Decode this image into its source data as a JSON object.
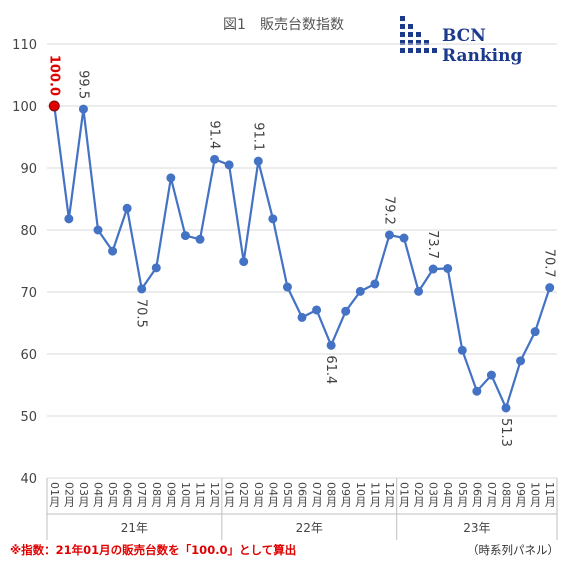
{
  "title": "図1　販売台数指数",
  "logo": {
    "name": "BCN Ranking",
    "icon": "bcn-grid-logo-icon",
    "color": "#1b3a8c"
  },
  "note": "※指数：21年01月の販売台数を「100.0」として算出",
  "panel_label": "（時系列パネル）",
  "chart_data": {
    "type": "line",
    "ylim": [
      40,
      110
    ],
    "yticks": [
      40,
      50,
      60,
      70,
      80,
      90,
      100,
      110
    ],
    "grid": true,
    "line_color": "#4472c4",
    "highlight_color": "#e00000",
    "x": [
      "01月",
      "02月",
      "03月",
      "04月",
      "05月",
      "06月",
      "07月",
      "08月",
      "09月",
      "10月",
      "11月",
      "12月",
      "01月",
      "02月",
      "03月",
      "04月",
      "05月",
      "06月",
      "07月",
      "08月",
      "09月",
      "10月",
      "11月",
      "12月",
      "01月",
      "02月",
      "03月",
      "04月",
      "05月",
      "06月",
      "07月",
      "08月",
      "09月",
      "10月",
      "11月"
    ],
    "years": [
      {
        "label": "21年",
        "start": 0,
        "end": 11
      },
      {
        "label": "22年",
        "start": 12,
        "end": 23
      },
      {
        "label": "23年",
        "start": 24,
        "end": 34
      }
    ],
    "series": [
      {
        "values": [
          100.0,
          81.8,
          99.5,
          80.0,
          76.6,
          83.5,
          70.5,
          73.9,
          88.4,
          79.1,
          78.5,
          91.4,
          90.5,
          74.9,
          91.1,
          81.8,
          70.8,
          65.9,
          67.1,
          61.4,
          66.9,
          70.1,
          71.3,
          79.2,
          78.7,
          70.1,
          73.7,
          73.8,
          60.6,
          54.0,
          56.6,
          51.3,
          58.9,
          63.6,
          70.7
        ]
      }
    ],
    "data_labels": [
      {
        "index": 0,
        "text": "100.0",
        "position": "above",
        "highlight": true
      },
      {
        "index": 2,
        "text": "99.5",
        "position": "above"
      },
      {
        "index": 6,
        "text": "70.5",
        "position": "below"
      },
      {
        "index": 11,
        "text": "91.4",
        "position": "above"
      },
      {
        "index": 14,
        "text": "91.1",
        "position": "above"
      },
      {
        "index": 19,
        "text": "61.4",
        "position": "below"
      },
      {
        "index": 23,
        "text": "79.2",
        "position": "above"
      },
      {
        "index": 26,
        "text": "73.7",
        "position": "above"
      },
      {
        "index": 31,
        "text": "51.3",
        "position": "below"
      },
      {
        "index": 34,
        "text": "70.7",
        "position": "above"
      }
    ]
  }
}
